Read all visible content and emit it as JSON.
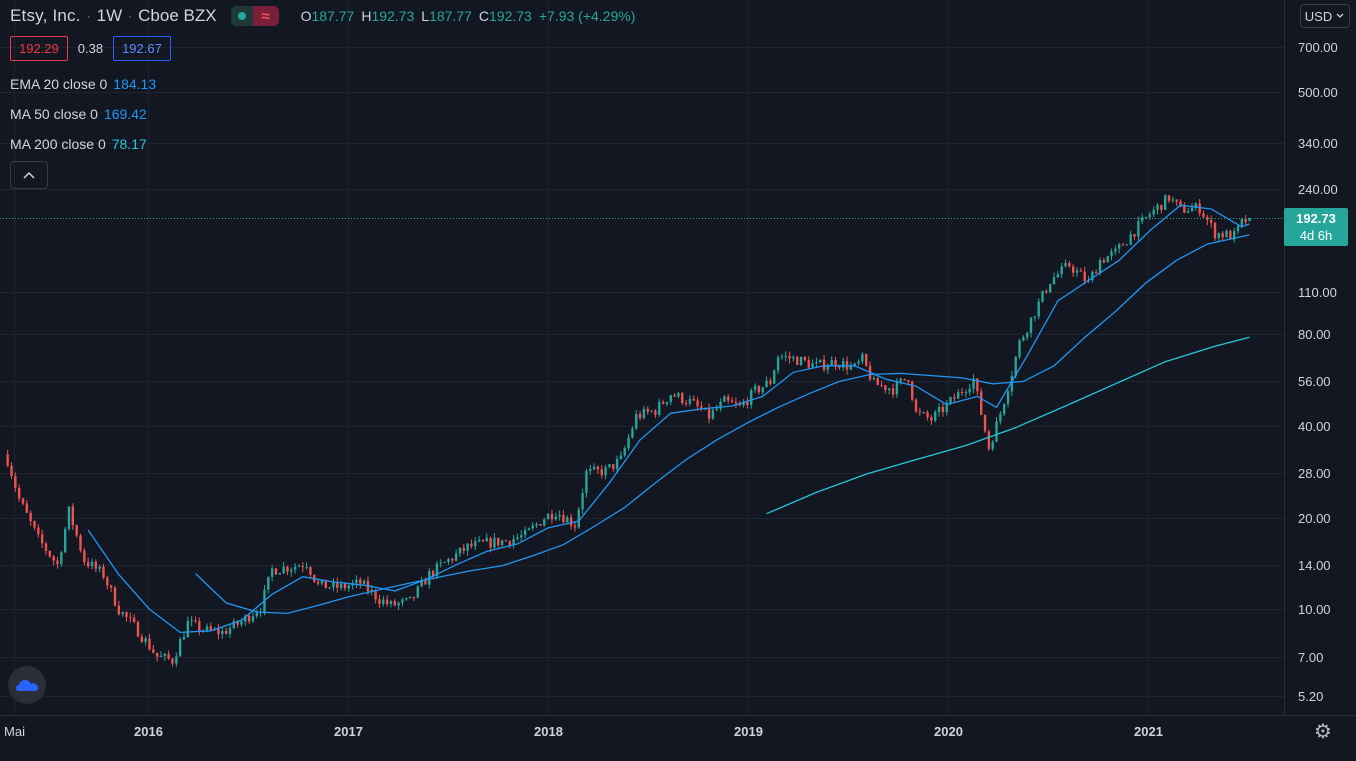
{
  "header": {
    "symbol": "Etsy, Inc.",
    "interval": "1W",
    "exchange": "Cboe BZX",
    "ohlc": {
      "o_label": "O",
      "o": "187.77",
      "h_label": "H",
      "h": "192.73",
      "l_label": "L",
      "l": "187.77",
      "c_label": "C",
      "c": "192.73",
      "change": "+7.93 (+4.29%)"
    }
  },
  "quote": {
    "bid": "192.29",
    "spread": "0.38",
    "ask": "192.67"
  },
  "indicators": [
    {
      "label": "EMA 20 close 0",
      "value": "184.13",
      "color": "#2196f3"
    },
    {
      "label": "MA 50 close 0",
      "value": "169.42",
      "color": "#2196f3"
    },
    {
      "label": "MA 200 close 0",
      "value": "78.17",
      "color": "#26c6da"
    }
  ],
  "icons": {
    "collapse": "chevron-up-icon",
    "logo": "tradingview-logo-icon",
    "settings": "gear-icon",
    "status": "market-open-dot-icon",
    "wave": "wave-icon"
  },
  "currency": "USD",
  "last_price": {
    "price": "192.73",
    "countdown": "4d 6h"
  },
  "colors": {
    "background": "#131722",
    "up": "#26a69a",
    "down": "#ef5350",
    "grid": "#1f2430",
    "ema": "#2196f3",
    "ma200": "#26c6da"
  },
  "chart_data": {
    "type": "candlestick",
    "title": "Etsy, Inc. · 1W · Cboe BZX",
    "y_scale": "log",
    "ylim": [
      4.5,
      1000
    ],
    "y_ticks": [
      "700.00",
      "500.00",
      "340.00",
      "240.00",
      "110.00",
      "80.00",
      "56.00",
      "40.00",
      "28.00",
      "20.00",
      "14.00",
      "10.00",
      "7.00",
      "5.20"
    ],
    "y_tick_values": [
      700,
      500,
      340,
      240,
      110,
      80,
      56,
      40,
      28,
      20,
      14,
      10,
      7,
      5.2
    ],
    "x_ticks": [
      "Mai",
      "2016",
      "2017",
      "2018",
      "2019",
      "2020",
      "2021"
    ],
    "x_tick_dates": [
      "2015-05-01",
      "2016-01-01",
      "2017-01-01",
      "2018-01-01",
      "2019-01-01",
      "2020-01-01",
      "2021-01-01"
    ],
    "x_range": [
      "2015-04-06",
      "2021-09-06"
    ],
    "grid": true,
    "price_keypoints": [
      [
        "2015-04-20",
        31
      ],
      [
        "2015-05-11",
        23
      ],
      [
        "2015-06-15",
        17
      ],
      [
        "2015-07-20",
        14
      ],
      [
        "2015-08-10",
        21
      ],
      [
        "2015-09-07",
        14.5
      ],
      [
        "2015-10-12",
        13
      ],
      [
        "2015-11-09",
        10
      ],
      [
        "2015-12-14",
        8.5
      ],
      [
        "2016-01-18",
        7
      ],
      [
        "2016-02-15",
        6.8
      ],
      [
        "2016-03-14",
        9
      ],
      [
        "2016-04-18",
        8.5
      ],
      [
        "2016-05-16",
        8.4
      ],
      [
        "2016-06-20",
        9.1
      ],
      [
        "2016-07-25",
        10.2
      ],
      [
        "2016-08-15",
        13.5
      ],
      [
        "2016-09-19",
        13.8
      ],
      [
        "2016-10-17",
        14.2
      ],
      [
        "2016-11-07",
        12
      ],
      [
        "2016-12-19",
        11.8
      ],
      [
        "2017-01-23",
        12.2
      ],
      [
        "2017-02-27",
        10.8
      ],
      [
        "2017-03-20",
        10.3
      ],
      [
        "2017-04-24",
        10.6
      ],
      [
        "2017-05-29",
        13
      ],
      [
        "2017-07-03",
        14.5
      ],
      [
        "2017-08-07",
        16
      ],
      [
        "2017-09-11",
        16.5
      ],
      [
        "2017-10-16",
        16.8
      ],
      [
        "2017-11-20",
        17.5
      ],
      [
        "2017-12-25",
        20
      ],
      [
        "2018-01-15",
        21
      ],
      [
        "2018-02-19",
        19
      ],
      [
        "2018-03-12",
        28
      ],
      [
        "2018-04-16",
        28.5
      ],
      [
        "2018-05-14",
        31
      ],
      [
        "2018-06-11",
        43
      ],
      [
        "2018-07-16",
        45
      ],
      [
        "2018-08-13",
        51
      ],
      [
        "2018-09-17",
        48
      ],
      [
        "2018-10-22",
        43
      ],
      [
        "2018-11-19",
        48
      ],
      [
        "2018-12-17",
        46
      ],
      [
        "2019-01-14",
        52
      ],
      [
        "2019-02-11",
        56
      ],
      [
        "2019-02-25",
        68
      ],
      [
        "2019-04-01",
        66
      ],
      [
        "2019-05-06",
        63
      ],
      [
        "2019-06-10",
        65
      ],
      [
        "2019-07-15",
        62
      ],
      [
        "2019-07-29",
        66
      ],
      [
        "2019-08-19",
        55
      ],
      [
        "2019-09-23",
        53
      ],
      [
        "2019-10-21",
        58
      ],
      [
        "2019-11-04",
        44
      ],
      [
        "2019-12-02",
        42
      ],
      [
        "2020-01-06",
        48
      ],
      [
        "2020-02-17",
        57
      ],
      [
        "2020-03-16",
        34
      ],
      [
        "2020-04-06",
        44
      ],
      [
        "2020-04-27",
        60
      ],
      [
        "2020-05-11",
        75
      ],
      [
        "2020-06-08",
        95
      ],
      [
        "2020-07-06",
        120
      ],
      [
        "2020-08-10",
        135
      ],
      [
        "2020-09-14",
        118
      ],
      [
        "2020-10-05",
        140
      ],
      [
        "2020-11-02",
        148
      ],
      [
        "2020-12-07",
        175
      ],
      [
        "2021-01-04",
        198
      ],
      [
        "2021-02-08",
        225
      ],
      [
        "2021-03-01",
        205
      ],
      [
        "2021-04-05",
        208
      ],
      [
        "2021-05-03",
        172
      ],
      [
        "2021-06-07",
        168
      ],
      [
        "2021-06-21",
        185
      ],
      [
        "2021-07-05",
        192.73
      ]
    ],
    "last_candle": {
      "date": "2021-07-05",
      "open": 187.77,
      "high": 192.73,
      "low": 187.77,
      "close": 192.73
    },
    "series": [
      {
        "name": "EMA 20 close 0",
        "last": 184.13,
        "points": [
          [
            "2015-09-14",
            18.2
          ],
          [
            "2015-11-09",
            13
          ],
          [
            "2016-01-04",
            10
          ],
          [
            "2016-02-29",
            8.4
          ],
          [
            "2016-04-25",
            8.5
          ],
          [
            "2016-06-20",
            9.2
          ],
          [
            "2016-08-15",
            11.2
          ],
          [
            "2016-10-10",
            12.8
          ],
          [
            "2016-12-05",
            12.3
          ],
          [
            "2017-01-30",
            12
          ],
          [
            "2017-03-27",
            11.5
          ],
          [
            "2017-05-22",
            12.5
          ],
          [
            "2017-07-17",
            14
          ],
          [
            "2017-09-11",
            15.5
          ],
          [
            "2017-11-06",
            16.4
          ],
          [
            "2018-01-01",
            18.5
          ],
          [
            "2018-02-26",
            19.5
          ],
          [
            "2018-04-23",
            26
          ],
          [
            "2018-06-18",
            36
          ],
          [
            "2018-08-13",
            44
          ],
          [
            "2018-10-08",
            45.5
          ],
          [
            "2018-12-03",
            46.5
          ],
          [
            "2019-01-28",
            50
          ],
          [
            "2019-03-25",
            60
          ],
          [
            "2019-05-20",
            63
          ],
          [
            "2019-07-15",
            63
          ],
          [
            "2019-09-09",
            57
          ],
          [
            "2019-11-04",
            54
          ],
          [
            "2019-12-30",
            47
          ],
          [
            "2020-02-24",
            50
          ],
          [
            "2020-03-30",
            46
          ],
          [
            "2020-05-25",
            68
          ],
          [
            "2020-07-20",
            103
          ],
          [
            "2020-09-14",
            120
          ],
          [
            "2020-11-09",
            140
          ],
          [
            "2021-01-04",
            175
          ],
          [
            "2021-03-01",
            212
          ],
          [
            "2021-04-26",
            206
          ],
          [
            "2021-06-21",
            180
          ],
          [
            "2021-07-05",
            184.13
          ]
        ]
      },
      {
        "name": "MA 50 close 0",
        "last": 169.42,
        "points": [
          [
            "2016-03-28",
            13.1
          ],
          [
            "2016-05-23",
            10.5
          ],
          [
            "2016-07-18",
            9.8
          ],
          [
            "2016-09-12",
            9.7
          ],
          [
            "2016-11-07",
            10.3
          ],
          [
            "2017-01-02",
            11.0
          ],
          [
            "2017-02-27",
            11.6
          ],
          [
            "2017-04-24",
            12.2
          ],
          [
            "2017-06-19",
            12.8
          ],
          [
            "2017-08-14",
            13.4
          ],
          [
            "2017-10-09",
            13.9
          ],
          [
            "2017-12-04",
            15.0
          ],
          [
            "2018-01-29",
            16.3
          ],
          [
            "2018-03-26",
            18.7
          ],
          [
            "2018-05-21",
            21.6
          ],
          [
            "2018-07-16",
            26
          ],
          [
            "2018-09-10",
            31
          ],
          [
            "2018-11-05",
            36
          ],
          [
            "2019-01-01",
            41
          ],
          [
            "2019-02-25",
            46
          ],
          [
            "2019-04-22",
            51
          ],
          [
            "2019-06-17",
            56
          ],
          [
            "2019-08-12",
            59
          ],
          [
            "2019-10-07",
            59.5
          ],
          [
            "2019-12-02",
            58.5
          ],
          [
            "2020-01-27",
            57.5
          ],
          [
            "2020-03-23",
            55
          ],
          [
            "2020-05-18",
            56
          ],
          [
            "2020-07-13",
            63
          ],
          [
            "2020-09-07",
            78
          ],
          [
            "2020-11-02",
            95
          ],
          [
            "2020-12-28",
            118
          ],
          [
            "2021-02-22",
            140
          ],
          [
            "2021-04-19",
            158
          ],
          [
            "2021-07-05",
            169.42
          ]
        ]
      },
      {
        "name": "MA 200 close 0",
        "last": 78.17,
        "points": [
          [
            "2019-02-04",
            20.6
          ],
          [
            "2019-05-06",
            24.2
          ],
          [
            "2019-08-05",
            27.8
          ],
          [
            "2019-11-04",
            31
          ],
          [
            "2020-02-03",
            34.5
          ],
          [
            "2020-05-04",
            39.5
          ],
          [
            "2020-08-03",
            46.5
          ],
          [
            "2020-11-02",
            55
          ],
          [
            "2021-02-01",
            65
          ],
          [
            "2021-05-03",
            73
          ],
          [
            "2021-07-05",
            78.17
          ]
        ]
      }
    ]
  }
}
